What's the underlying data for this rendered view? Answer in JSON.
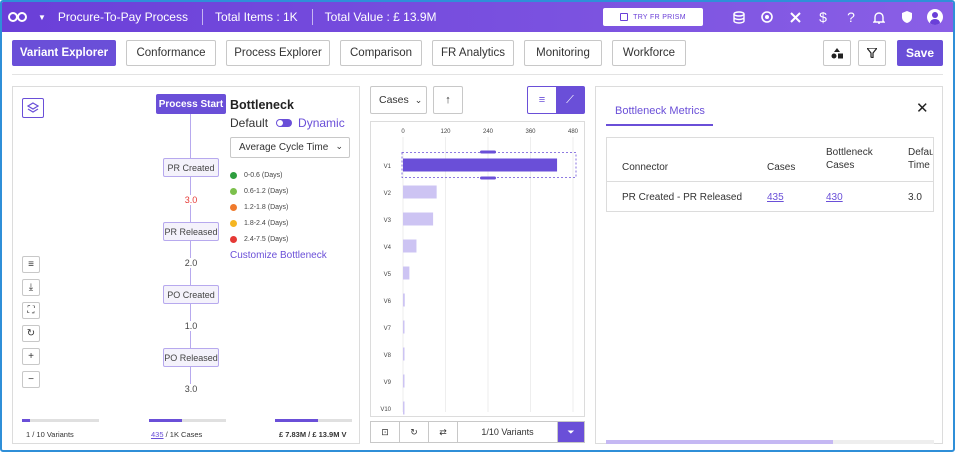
{
  "topbar": {
    "process_name": "Procure-To-Pay Process",
    "total_items": "Total Items : 1K",
    "total_value": "Total Value : £ 13.9M",
    "prism_button": "TRY FR PRISM",
    "icons": [
      "database-icon",
      "globe-settings-icon",
      "tools-icon",
      "dollar-icon",
      "help-icon",
      "bell-icon",
      "badge-icon",
      "user-avatar-icon"
    ]
  },
  "tabs": [
    "Variant Explorer",
    "Conformance",
    "Process Explorer",
    "Comparison",
    "FR Analytics",
    "Monitoring",
    "Workforce"
  ],
  "active_tab": "Variant Explorer",
  "save_label": "Save",
  "process_map": {
    "start_label": "Process Start",
    "nodes": [
      "PR Created",
      "PR Released",
      "PO Created",
      "PO Released"
    ],
    "edges": [
      "3.0",
      "2.0",
      "1.0",
      "3.0"
    ]
  },
  "bottleneck": {
    "title": "Bottleneck",
    "mode_default": "Default",
    "mode_dynamic": "Dynamic",
    "metric_select": "Average Cycle Time",
    "legend": [
      {
        "label": "0-0.6 (Days)",
        "color": "#2e9e3e"
      },
      {
        "label": "0.6-1.2 (Days)",
        "color": "#7cc04c"
      },
      {
        "label": "1.2-1.8 (Days)",
        "color": "#f07a2c"
      },
      {
        "label": "1.8-2.4 (Days)",
        "color": "#f5b622"
      },
      {
        "label": "2.4-7.5 (Days)",
        "color": "#e53935"
      }
    ],
    "customize_link": "Customize Bottleneck"
  },
  "left_stats": {
    "variants_text": "1  /  10 Variants",
    "variants_fraction": 0.1,
    "cases_link": "435",
    "cases_text": " /  1K Cases",
    "cases_fraction": 0.435,
    "value_text": "£ 7.83M  /  £ 13.9M V",
    "value_fraction": 0.56
  },
  "variant_chart": {
    "measure_select": "Cases",
    "footer_text": "1/10 Variants"
  },
  "chart_data": {
    "type": "bar",
    "orientation": "horizontal",
    "categories": [
      "V1",
      "V2",
      "V3",
      "V4",
      "V5",
      "V6",
      "V7",
      "V8",
      "V9",
      "V10"
    ],
    "values": [
      435,
      95,
      85,
      38,
      18,
      5,
      3,
      2,
      1,
      1
    ],
    "xticks": [
      0,
      120,
      240,
      360,
      480
    ],
    "xlim": [
      0,
      480
    ],
    "selected": "V1",
    "color_selected": "#6a4fd8",
    "color_default": "#cdc4f3"
  },
  "bottleneck_metrics": {
    "tab_label": "Bottleneck Metrics",
    "columns": [
      "Connector",
      "Cases",
      "Bottleneck Cases",
      "Default Time"
    ],
    "rows": [
      {
        "connector": "PR Created - PR Released",
        "cases": "435",
        "bottleneck_cases": "430",
        "time": "3.0"
      }
    ]
  }
}
